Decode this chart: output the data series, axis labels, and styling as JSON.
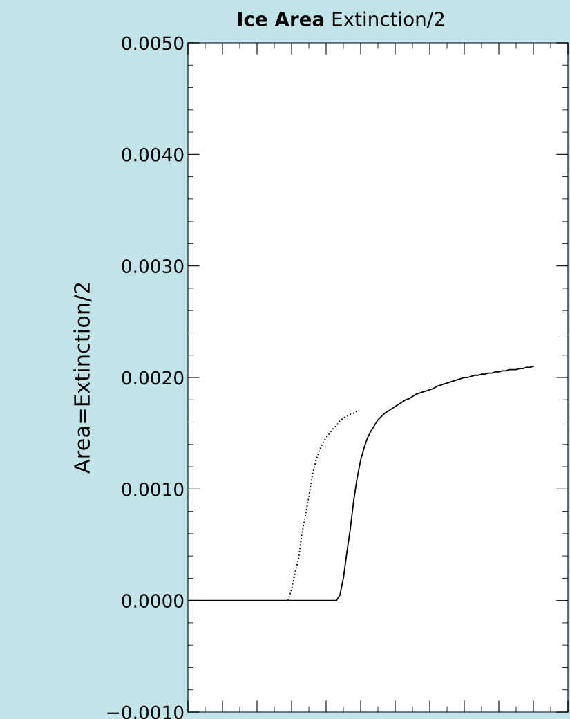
{
  "chart_data": {
    "type": "line",
    "title": "Ice Area",
    "subtitle": "Extinction/2",
    "ylabel": "Area=Extinction/2",
    "categories": [
      null,
      null,
      null,
      null,
      null,
      null,
      null,
      null,
      null,
      null,
      null,
      null,
      null,
      null,
      null,
      null,
      null,
      null,
      null,
      null,
      null,
      null,
      null,
      null,
      null,
      null,
      null,
      null,
      null,
      null,
      null,
      null,
      null,
      null,
      null,
      null,
      null,
      null,
      null,
      null,
      null,
      null,
      null,
      null,
      null,
      null,
      null,
      null,
      null,
      null,
      null,
      null,
      null,
      null,
      null,
      null,
      null,
      null,
      null,
      null,
      null,
      null,
      null,
      null,
      null,
      null,
      null,
      null,
      null,
      null,
      null,
      null,
      null,
      null,
      null,
      null,
      null,
      null,
      null,
      null,
      null,
      null,
      null,
      null,
      null,
      null,
      null,
      null,
      null,
      null,
      null,
      null,
      null,
      null,
      null,
      null,
      null,
      null,
      null,
      null,
      null,
      null,
      null,
      null,
      null,
      null,
      null,
      null,
      null,
      null,
      null
    ],
    "series": [
      {
        "color": "#000000",
        "line_style": "solid",
        "values": [
          0,
          0,
          0,
          0,
          0,
          0,
          0,
          0,
          0,
          0,
          0,
          0,
          0,
          0,
          0,
          0,
          0,
          0,
          0,
          0,
          0,
          0,
          0,
          0,
          0,
          0,
          0,
          0,
          0,
          0,
          0,
          0,
          0,
          0,
          0,
          0,
          0,
          0,
          0,
          0,
          0,
          0,
          0,
          0,
          5e-05,
          0.0002,
          0.00043,
          0.00064,
          0.0009,
          0.0011,
          0.00126,
          0.00137,
          0.00146,
          0.00152,
          0.00157,
          0.00162,
          0.00165,
          0.00168,
          0.0017,
          0.00172,
          0.00174,
          0.00176,
          0.00178,
          0.0018,
          0.00181,
          0.00183,
          0.00185,
          0.00186,
          0.00187,
          0.00188,
          0.00189,
          0.0019,
          0.00192,
          0.00193,
          0.00194,
          0.00195,
          0.00196,
          0.00197,
          0.00198,
          0.00199,
          0.002,
          0.002,
          0.00201,
          0.00202,
          0.00202,
          0.00203,
          0.00203,
          0.00204,
          0.00204,
          0.00205,
          0.00205,
          0.00206,
          0.00206,
          0.00207,
          0.00207,
          0.00207,
          0.00208,
          0.00208,
          0.00209,
          0.00209,
          0.0021,
          null,
          null,
          null,
          null,
          null,
          null,
          null,
          null,
          null,
          null
        ]
      },
      {
        "color": "#000000",
        "line_style": "dotted",
        "values": [
          null,
          null,
          null,
          null,
          null,
          null,
          null,
          null,
          null,
          null,
          null,
          null,
          null,
          null,
          null,
          null,
          null,
          null,
          null,
          null,
          null,
          null,
          null,
          null,
          null,
          null,
          null,
          null,
          null,
          0,
          0.0001,
          0.00025,
          0.00037,
          0.0006,
          0.00076,
          0.00093,
          0.00112,
          0.00125,
          0.00134,
          0.00141,
          0.00146,
          0.0015,
          0.00154,
          0.00157,
          0.00161,
          0.00164,
          0.00165,
          0.00167,
          0.00168,
          0.0017,
          null,
          null,
          null,
          null,
          null,
          null,
          null,
          null,
          null,
          null,
          null,
          null,
          null,
          null,
          null,
          null,
          null,
          null,
          null,
          null,
          null,
          null,
          null,
          null,
          null,
          null,
          null,
          null,
          null,
          null,
          null,
          null,
          null,
          null,
          null,
          null,
          null,
          null,
          null,
          null,
          null,
          null,
          null,
          null,
          null,
          null,
          null,
          null,
          null,
          null,
          null,
          null,
          null,
          null,
          null,
          null,
          null,
          null,
          null,
          null,
          null
        ]
      }
    ],
    "ylim": [
      -0.001,
      0.005
    ],
    "yticks": [
      {
        "value": -0.001,
        "label": "−0.0010"
      },
      {
        "value": 0,
        "label": "0.0000"
      },
      {
        "value": 0.001,
        "label": "0.0010"
      },
      {
        "value": 0.002,
        "label": "0.0020"
      },
      {
        "value": 0.003,
        "label": "0.0030"
      },
      {
        "value": 0.004,
        "label": "0.0040"
      },
      {
        "value": 0.005,
        "label": "0.0050"
      }
    ],
    "tick_labels": "y",
    "grid": false,
    "legend": false,
    "marker": "none"
  }
}
